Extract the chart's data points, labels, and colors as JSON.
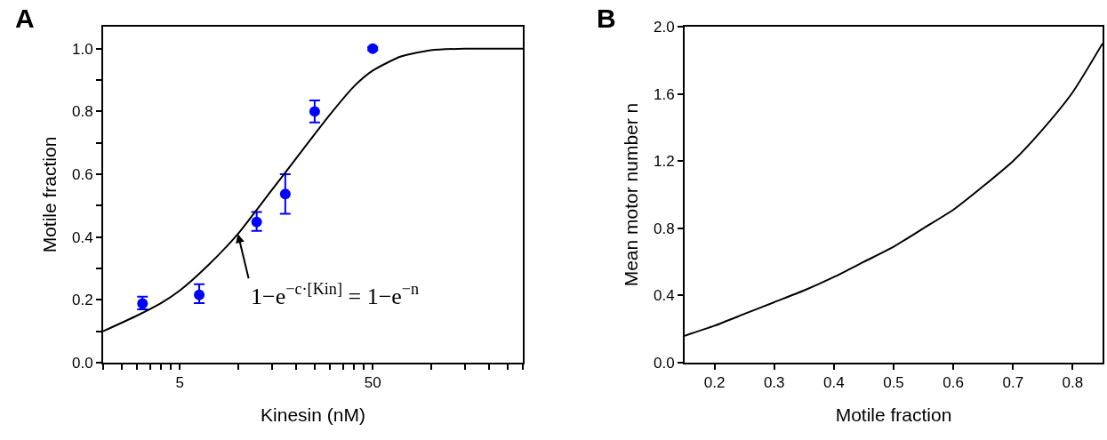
{
  "chart_data": [
    {
      "type": "scatter",
      "title": "A",
      "xlabel": "Kinesin (nM)",
      "ylabel": "Motile fraction",
      "log": "x",
      "x": [
        3.2,
        6.3,
        12.5,
        17.6,
        25,
        50
      ],
      "series": [
        {
          "type": "scatter",
          "color": "#0000ff",
          "marker": "circle",
          "values": [
            0.188,
            0.216,
            0.448,
            0.537,
            0.8,
            1.0
          ],
          "errors": [
            [
              0.17,
              0.21
            ],
            [
              0.19,
              0.25
            ],
            [
              0.42,
              0.48
            ],
            [
              0.474,
              0.6
            ],
            [
              0.765,
              0.835
            ],
            [
              0.995,
              1.005
            ]
          ]
        },
        {
          "type": "line",
          "color": "#000000",
          "line_style": "solid",
          "x": [
            2,
            3,
            4,
            5,
            7,
            10,
            15,
            20,
            30,
            40,
            50,
            70,
            100,
            150,
            200,
            300
          ],
          "values": [
            0.1,
            0.15,
            0.19,
            0.23,
            0.31,
            0.41,
            0.55,
            0.65,
            0.79,
            0.88,
            0.93,
            0.975,
            0.995,
            1.0,
            1.0,
            1.0
          ]
        }
      ],
      "xlim": [
        2,
        300
      ],
      "xticks": [
        {
          "value": 2,
          "label": null
        },
        {
          "value": 2.5,
          "label": null
        },
        {
          "value": 3,
          "label": null
        },
        {
          "value": 3.5,
          "label": null
        },
        {
          "value": 4,
          "label": null
        },
        {
          "value": 4.5,
          "label": null
        },
        5,
        {
          "value": 10,
          "label": null
        },
        {
          "value": 15,
          "label": null
        },
        {
          "value": 20,
          "label": null
        },
        {
          "value": 25,
          "label": null
        },
        {
          "value": 30,
          "label": null
        },
        {
          "value": 35,
          "label": null
        },
        {
          "value": 40,
          "label": null
        },
        {
          "value": 45,
          "label": null
        },
        50,
        {
          "value": 100,
          "label": null
        },
        {
          "value": 150,
          "label": null
        },
        {
          "value": 200,
          "label": null
        },
        {
          "value": 250,
          "label": null
        },
        {
          "value": 300,
          "label": null
        }
      ],
      "ylim": [
        0,
        1.07
      ],
      "yticks": [
        {
          "value": 0,
          "label": "0.0"
        },
        {
          "value": 0.1,
          "label": null
        },
        0.2,
        {
          "value": 0.3,
          "label": null
        },
        0.4,
        {
          "value": 0.5,
          "label": null
        },
        0.6,
        {
          "value": 0.7,
          "label": null
        },
        0.8,
        {
          "value": 0.9,
          "label": null
        },
        {
          "value": 1.0,
          "label": "1.0"
        }
      ],
      "annotations": [
        {
          "text": "1−e$^{−c·[Kin]}$ = 1−e$^{−n}$",
          "x": 10,
          "y": 0.41
        }
      ]
    },
    {
      "type": "line",
      "title": "B",
      "xlabel": "Motile fraction",
      "ylabel": "Mean motor number n",
      "x": [
        0.15,
        0.2,
        0.25,
        0.3,
        0.35,
        0.4,
        0.45,
        0.5,
        0.55,
        0.6,
        0.65,
        0.7,
        0.75,
        0.8,
        0.85
      ],
      "series": [
        {
          "color": "#000000",
          "line_style": "solid",
          "values": [
            0.16,
            0.22,
            0.29,
            0.36,
            0.43,
            0.51,
            0.6,
            0.69,
            0.8,
            0.91,
            1.05,
            1.2,
            1.39,
            1.61,
            1.9
          ]
        }
      ],
      "xlim": [
        0.15,
        0.85
      ],
      "xticks": [
        0.2,
        0.3,
        0.4,
        0.5,
        0.6,
        0.7,
        0.8
      ],
      "ylim": [
        0,
        2.0
      ],
      "yticks": [
        {
          "value": 0,
          "label": "0.0"
        },
        0.4,
        0.8,
        1.2,
        1.6,
        {
          "value": 2.0,
          "label": "2.0"
        }
      ]
    }
  ]
}
